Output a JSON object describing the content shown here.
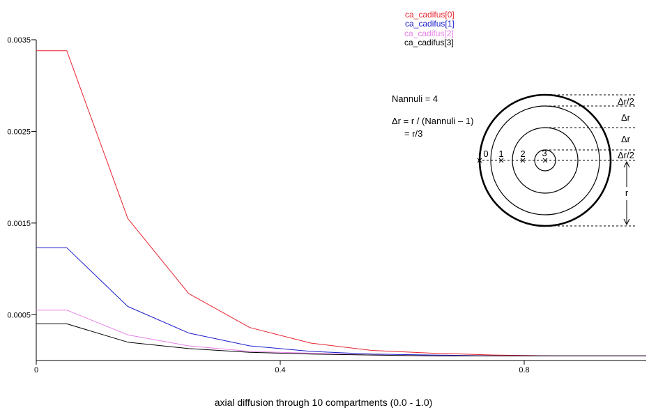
{
  "chart_data": {
    "type": "line",
    "x": [
      0,
      0.05,
      0.15,
      0.25,
      0.35,
      0.45,
      0.55,
      0.65,
      0.75,
      0.85,
      0.95,
      1
    ],
    "series": [
      {
        "name": "ca_cadifus[0]",
        "color": "#e8232f",
        "values": [
          0.00338,
          0.00338,
          0.00155,
          0.00073,
          0.00036,
          0.00019,
          0.00011,
          8e-05,
          6e-05,
          5e-05,
          5e-05,
          5e-05
        ]
      },
      {
        "name": "ca_cadifus[1]",
        "color": "#1a1acc",
        "values": [
          0.00123,
          0.00123,
          0.00059,
          0.0003,
          0.00016,
          0.0001,
          7e-05,
          6e-05,
          5e-05,
          5e-05,
          5e-05,
          5e-05
        ]
      },
      {
        "name": "ca_cadifus[2]",
        "color": "#e77ee8",
        "values": [
          0.00055,
          0.00055,
          0.00028,
          0.00016,
          0.0001,
          8e-05,
          6e-05,
          5e-05,
          5e-05,
          5e-05,
          5e-05,
          5e-05
        ]
      },
      {
        "name": "ca_cadifus[3]",
        "color": "#000000",
        "values": [
          0.0004,
          0.0004,
          0.0002,
          0.00013,
          9e-05,
          7e-05,
          6e-05,
          5e-05,
          5e-05,
          5e-05,
          5e-05,
          5e-05
        ]
      }
    ],
    "xlabel": "axial diffusion through 10 compartments (0.0 - 1.0)",
    "xlim": [
      0,
      1
    ],
    "ylim": [
      0,
      0.0035
    ],
    "xticks": [
      "0",
      "0.4",
      "0.8"
    ],
    "yticks": [
      "0.0005",
      "0.0015",
      "0.0025",
      "0.0035"
    ],
    "grid": false,
    "legend_position": "top-right"
  },
  "inset_diagram": {
    "nannuli_text": "Nannuli = 4",
    "formula_text": "Δr = r / (Nannuli – 1)",
    "formula_result": "= r/3",
    "annulus_labels": [
      "0",
      "1",
      "2",
      "3"
    ],
    "spacing_labels": [
      "Δr/2",
      "Δr",
      "Δr",
      "Δr/2"
    ],
    "radius_label": "r"
  }
}
